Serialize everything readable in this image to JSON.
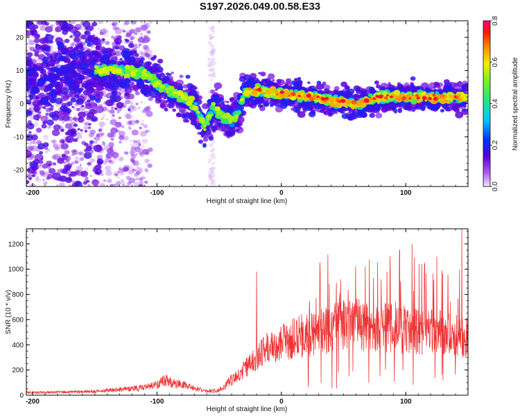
{
  "title": "S197.2026.049.00.58.E33",
  "chart_data": [
    {
      "type": "heatmap",
      "xlabel": "Height of straight line (km)",
      "ylabel": "Frequency (Hz)",
      "xlim": [
        -205,
        150
      ],
      "ylim": [
        -25,
        25
      ],
      "xticks": [
        -200,
        -100,
        0,
        100
      ],
      "yticks": [
        -20,
        -10,
        0,
        10,
        20
      ],
      "colorbar": {
        "label": "Normalized spectral amplitude",
        "range": [
          0,
          0.8
        ],
        "ticks": [
          0,
          0.2,
          0.4,
          0.6,
          0.8
        ],
        "tick_labels": [
          "0.0",
          "0.2",
          "0.4",
          "0.6",
          "0.8"
        ]
      },
      "ridge": [
        {
          "x": -205,
          "f": 7
        },
        {
          "x": -160,
          "f": 9
        },
        {
          "x": -150,
          "f": 10
        },
        {
          "x": -130,
          "f": 10
        },
        {
          "x": -110,
          "f": 9
        },
        {
          "x": -100,
          "f": 6
        },
        {
          "x": -90,
          "f": 4
        },
        {
          "x": -80,
          "f": 2
        },
        {
          "x": -70,
          "f": 0
        },
        {
          "x": -62,
          "f": -7
        },
        {
          "x": -55,
          "f": -1
        },
        {
          "x": -47,
          "f": -4
        },
        {
          "x": -40,
          "f": -5
        },
        {
          "x": -35,
          "f": -3
        },
        {
          "x": -30,
          "f": 3
        },
        {
          "x": -20,
          "f": 4
        },
        {
          "x": 0,
          "f": 3
        },
        {
          "x": 20,
          "f": 2
        },
        {
          "x": 40,
          "f": 1
        },
        {
          "x": 60,
          "f": 0
        },
        {
          "x": 80,
          "f": 2
        },
        {
          "x": 100,
          "f": 2
        },
        {
          "x": 120,
          "f": 2
        },
        {
          "x": 150,
          "f": 2
        }
      ]
    },
    {
      "type": "line",
      "xlabel": "Height of straight line (km)",
      "ylabel": "SNR (10 * v/v)",
      "xlim": [
        -205,
        150
      ],
      "ylim": [
        0,
        1320
      ],
      "xticks": [
        -200,
        -100,
        0,
        100
      ],
      "yticks": [
        0,
        200,
        400,
        600,
        800,
        1000,
        1200
      ],
      "color": "#ee3333",
      "envelope": [
        {
          "x": -205,
          "y": 20
        },
        {
          "x": -150,
          "y": 30
        },
        {
          "x": -130,
          "y": 45
        },
        {
          "x": -110,
          "y": 60
        },
        {
          "x": -100,
          "y": 80
        },
        {
          "x": -95,
          "y": 120
        },
        {
          "x": -85,
          "y": 90
        },
        {
          "x": -75,
          "y": 70
        },
        {
          "x": -60,
          "y": 30
        },
        {
          "x": -50,
          "y": 40
        },
        {
          "x": -40,
          "y": 120
        },
        {
          "x": -30,
          "y": 200
        },
        {
          "x": -20,
          "y": 300
        },
        {
          "x": -10,
          "y": 380
        },
        {
          "x": 0,
          "y": 420
        },
        {
          "x": 20,
          "y": 480
        },
        {
          "x": 40,
          "y": 530
        },
        {
          "x": 60,
          "y": 560
        },
        {
          "x": 80,
          "y": 540
        },
        {
          "x": 100,
          "y": 520
        },
        {
          "x": 120,
          "y": 500
        },
        {
          "x": 140,
          "y": 480
        },
        {
          "x": 150,
          "y": 470
        }
      ],
      "spikes": [
        {
          "x": -20,
          "y": 980
        },
        {
          "x": 50,
          "y": 750
        },
        {
          "x": 85,
          "y": 980
        },
        {
          "x": 95,
          "y": 1150
        },
        {
          "x": 105,
          "y": 1200
        },
        {
          "x": 115,
          "y": 1050
        },
        {
          "x": 125,
          "y": 1100
        },
        {
          "x": 145,
          "y": 1320
        }
      ]
    }
  ]
}
